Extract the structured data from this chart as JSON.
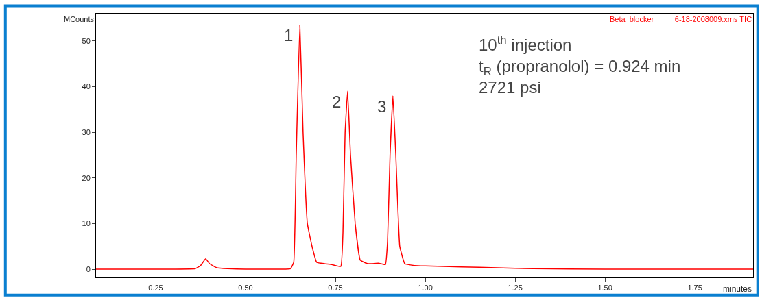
{
  "chart_data": {
    "type": "line",
    "title": "Beta_blocker_____6-18-2008009.xms TIC",
    "xlabel": "minutes",
    "ylabel": "MCounts",
    "x": [
      0.084,
      0.2,
      0.3,
      0.36,
      0.375,
      0.389,
      0.4,
      0.42,
      0.45,
      0.5,
      0.55,
      0.6,
      0.625,
      0.634,
      0.641,
      0.651,
      0.66,
      0.672,
      0.685,
      0.698,
      0.72,
      0.74,
      0.765,
      0.771,
      0.777,
      0.784,
      0.792,
      0.805,
      0.819,
      0.84,
      0.87,
      0.889,
      0.895,
      0.902,
      0.91,
      0.918,
      0.929,
      0.943,
      0.97,
      1.0,
      1.1,
      1.2,
      1.3,
      1.5,
      1.7,
      1.912
    ],
    "series": [
      {
        "color": "#ff0000",
        "values": [
          0,
          0,
          0,
          0.1,
          0.8,
          2.3,
          1.2,
          0.3,
          0.1,
          0,
          0,
          0,
          0.1,
          1.5,
          25,
          53.6,
          30,
          10,
          5,
          1.5,
          1.2,
          1.0,
          0.6,
          8,
          30,
          39,
          25,
          10,
          2,
          1.2,
          1.3,
          1.0,
          6,
          25,
          38,
          25,
          5,
          1.2,
          0.8,
          0.7,
          0.5,
          0.3,
          0.1,
          0,
          0,
          0
        ]
      }
    ],
    "xlim": [
      0.084,
      1.912
    ],
    "ylim": [
      -1.8,
      56
    ],
    "xticks": [
      {
        "value": 0.25,
        "label": "0.25"
      },
      {
        "value": 0.5,
        "label": "0.50"
      },
      {
        "value": 0.75,
        "label": "0.75"
      },
      {
        "value": 1.0,
        "label": "1.00"
      },
      {
        "value": 1.25,
        "label": "1.25"
      },
      {
        "value": 1.5,
        "label": "1.50"
      },
      {
        "value": 1.75,
        "label": "1.75"
      }
    ],
    "yticks": [
      0,
      10,
      20,
      30,
      40,
      50
    ],
    "marker": "none",
    "line_style": "solid",
    "annotations": [
      {
        "text": "1",
        "x": 0.651,
        "y": 53.6
      },
      {
        "text": "2",
        "x": 0.784,
        "y": 39
      },
      {
        "text": "3",
        "x": 0.91,
        "y": 38
      },
      "10$^{th}$ injection",
      "t$_{R}$ (propranolol) = 0.924 min",
      "2721 psi"
    ]
  }
}
